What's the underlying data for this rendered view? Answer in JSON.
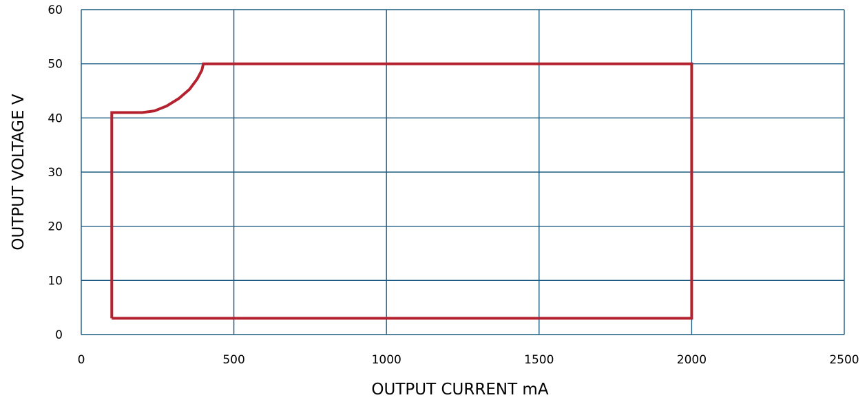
{
  "chart_data": {
    "type": "line",
    "title": "",
    "xlabel": "OUTPUT CURRENT mA",
    "ylabel": "OUTPUT VOLTAGE V",
    "xlim": [
      0,
      2500
    ],
    "ylim": [
      0,
      60
    ],
    "x_ticks": [
      0,
      500,
      1000,
      1500,
      2000,
      2500
    ],
    "y_ticks": [
      0,
      10,
      20,
      30,
      40,
      50,
      60
    ],
    "x_tick_labels": [
      "0",
      "500",
      "1000",
      "1500",
      "2000",
      "2500"
    ],
    "y_tick_labels": [
      "0",
      "10",
      "20",
      "30",
      "40",
      "50",
      "60"
    ],
    "grid": true,
    "legend": "none",
    "colors": {
      "grid": "#1d5b82",
      "series": "#b5222f"
    },
    "series": [
      {
        "points": [
          [
            100,
            3
          ],
          [
            100,
            41
          ],
          [
            200,
            41
          ],
          [
            240,
            41.3
          ],
          [
            280,
            42.2
          ],
          [
            320,
            43.6
          ],
          [
            355,
            45.3
          ],
          [
            380,
            47.2
          ],
          [
            395,
            48.8
          ],
          [
            400,
            50
          ],
          [
            2000,
            50
          ],
          [
            2000,
            3
          ],
          [
            100,
            3
          ]
        ]
      }
    ]
  }
}
